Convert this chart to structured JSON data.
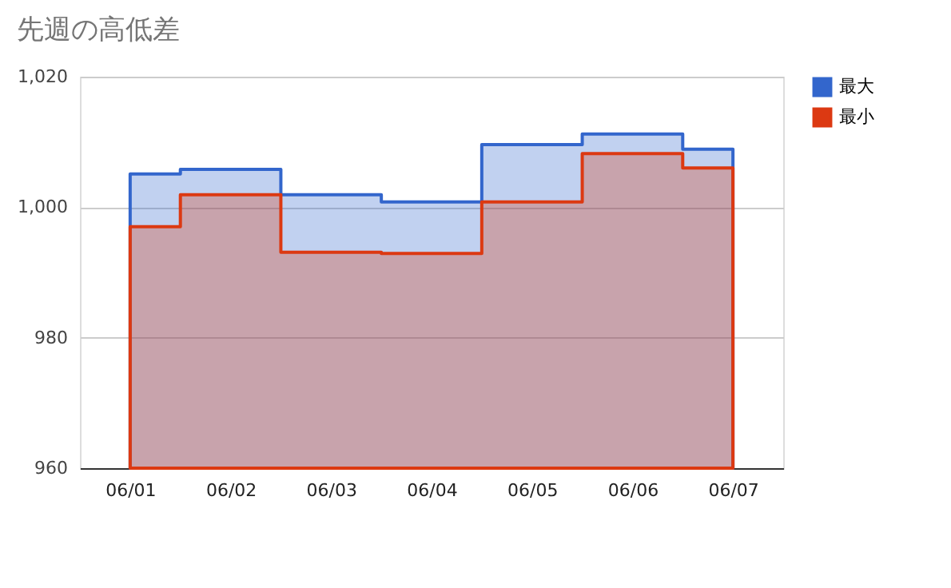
{
  "chart_data": {
    "type": "area",
    "title": "先週の高低差",
    "categories": [
      "06/01",
      "06/02",
      "06/03",
      "06/04",
      "06/05",
      "06/06",
      "06/07"
    ],
    "series": [
      {
        "name": "最大",
        "color": "#3366cc",
        "values": [
          1005.1,
          1005.8,
          1001.9,
          1000.8,
          1009.6,
          1011.2,
          1008.9
        ]
      },
      {
        "name": "最小",
        "color": "#dc3912",
        "values": [
          997.0,
          1001.9,
          993.1,
          992.9,
          1000.8,
          1008.2,
          1006.0
        ]
      }
    ],
    "ylim": [
      960,
      1020
    ],
    "yticks": [
      960,
      980,
      {
        "value": 1000,
        "label": "1,000"
      },
      {
        "value": 1020,
        "label": "1,020"
      }
    ],
    "grid": "y",
    "legend": "top right"
  }
}
